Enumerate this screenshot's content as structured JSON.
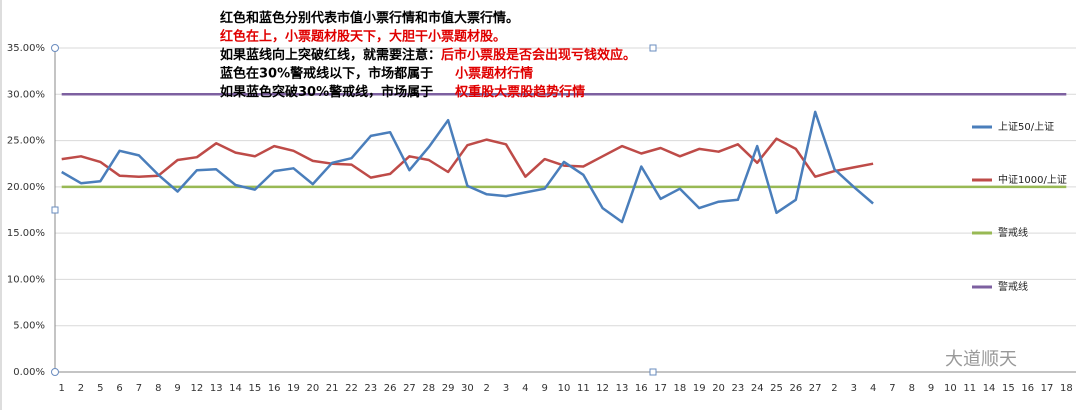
{
  "chart_data": {
    "type": "line",
    "annotations": [
      [
        {
          "text": "红色和蓝色分别代表市值小票行情和市值大票行情。",
          "color": "#000000"
        }
      ],
      [
        {
          "text": "红色在上，小票题材股天下，大胆干小票题材股。",
          "color": "#e00000"
        }
      ],
      [
        {
          "text": "如果蓝线向上突破红线，就需要注意：",
          "color": "#000000"
        },
        {
          "text": "后市小票股是否会出现亏钱效应。",
          "color": "#e00000"
        }
      ],
      [
        {
          "text": "蓝色在30%警戒线以下，市场都属于",
          "color": "#000000"
        },
        {
          "text": "小票题材行情",
          "color": "#e00000"
        }
      ],
      [
        {
          "text": "如果蓝色突破30%警戒线，市场属于",
          "color": "#000000"
        },
        {
          "text": "权重股大票股趋势行情",
          "color": "#e00000"
        }
      ]
    ],
    "watermark": "大道顺天",
    "categories": [
      "1",
      "2",
      "5",
      "6",
      "7",
      "8",
      "9",
      "12",
      "13",
      "14",
      "15",
      "16",
      "19",
      "20",
      "21",
      "22",
      "23",
      "26",
      "27",
      "28",
      "29",
      "30",
      "2",
      "3",
      "4",
      "9",
      "10",
      "11",
      "12",
      "13",
      "16",
      "17",
      "18",
      "19",
      "20",
      "23",
      "24",
      "25",
      "26",
      "27",
      "2",
      "3",
      "4",
      "7",
      "8",
      "9",
      "10",
      "11",
      "14",
      "15",
      "16",
      "17",
      "18"
    ],
    "series": [
      {
        "name": "上证50/上证",
        "color": "#4a7ebb",
        "values": [
          21.6,
          20.4,
          20.6,
          23.9,
          23.4,
          21.3,
          19.5,
          21.8,
          21.9,
          20.2,
          19.7,
          21.7,
          22.0,
          20.3,
          22.6,
          23.1,
          25.5,
          25.9,
          21.8,
          24.3,
          27.2,
          20.1,
          19.2,
          19.0,
          19.4,
          19.8,
          22.7,
          21.3,
          17.7,
          16.2,
          22.2,
          18.7,
          19.8,
          17.7,
          18.4,
          18.6,
          24.4,
          17.2,
          18.6,
          28.1,
          21.9,
          20.0,
          18.2,
          null,
          null,
          null,
          null,
          null,
          null,
          null,
          null,
          null,
          null
        ]
      },
      {
        "name": "中证1000/上证",
        "color": "#be4b48",
        "values": [
          23.0,
          23.3,
          22.7,
          21.2,
          21.1,
          21.2,
          22.9,
          23.2,
          24.7,
          23.7,
          23.3,
          24.4,
          23.9,
          22.8,
          22.5,
          22.4,
          21.0,
          21.4,
          23.3,
          22.9,
          21.6,
          24.5,
          25.1,
          24.6,
          21.1,
          23.0,
          22.3,
          22.2,
          23.3,
          24.4,
          23.6,
          24.2,
          23.3,
          24.1,
          23.8,
          24.6,
          22.6,
          25.2,
          24.1,
          21.1,
          21.7,
          22.1,
          22.5,
          null,
          null,
          null,
          null,
          null,
          null,
          null,
          null,
          null,
          null
        ]
      },
      {
        "name": "警戒线",
        "color": "#98b954",
        "values": [
          20,
          20,
          20,
          20,
          20,
          20,
          20,
          20,
          20,
          20,
          20,
          20,
          20,
          20,
          20,
          20,
          20,
          20,
          20,
          20,
          20,
          20,
          20,
          20,
          20,
          20,
          20,
          20,
          20,
          20,
          20,
          20,
          20,
          20,
          20,
          20,
          20,
          20,
          20,
          20,
          20,
          20,
          20,
          20,
          20,
          20,
          20,
          20,
          20,
          20,
          20,
          20,
          20
        ]
      },
      {
        "name": "警戒线",
        "color": "#7d60a0",
        "values": [
          30,
          30,
          30,
          30,
          30,
          30,
          30,
          30,
          30,
          30,
          30,
          30,
          30,
          30,
          30,
          30,
          30,
          30,
          30,
          30,
          30,
          30,
          30,
          30,
          30,
          30,
          30,
          30,
          30,
          30,
          30,
          30,
          30,
          30,
          30,
          30,
          30,
          30,
          30,
          30,
          30,
          30,
          30,
          30,
          30,
          30,
          30,
          30,
          30,
          30,
          30,
          30,
          30
        ]
      }
    ],
    "ylim": [
      0,
      35
    ],
    "yticks": [
      {
        "value": 0,
        "label": "0.00%"
      },
      {
        "value": 5,
        "label": "5.00%"
      },
      {
        "value": 10,
        "label": "10.00%"
      },
      {
        "value": 15,
        "label": "15.00%"
      },
      {
        "value": 20,
        "label": "20.00%"
      },
      {
        "value": 25,
        "label": "25.00%"
      },
      {
        "value": 30,
        "label": "30.00%"
      },
      {
        "value": 35,
        "label": "35.00%"
      }
    ],
    "grid": true,
    "legend": "right"
  }
}
